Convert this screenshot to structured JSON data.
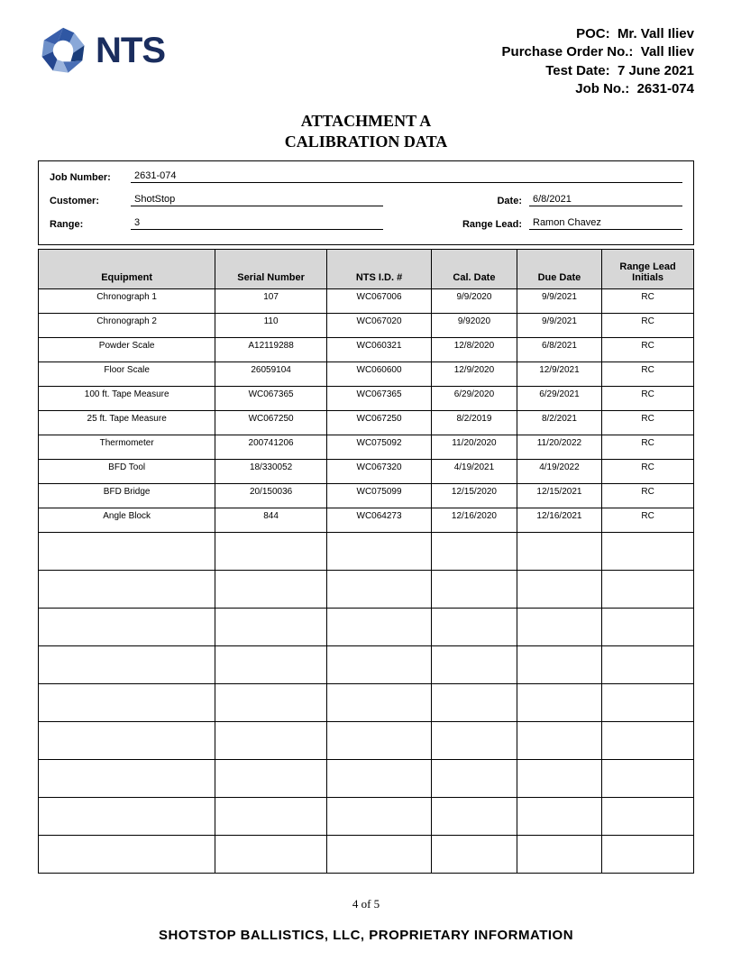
{
  "header": {
    "poc_label": "POC:",
    "poc_value": "Mr. Vall Iliev",
    "po_label": "Purchase Order No.:",
    "po_value": "Vall Iliev",
    "testdate_label": "Test Date:",
    "testdate_value": "7 June 2021",
    "jobno_label": "Job No.:",
    "jobno_value": "2631-074",
    "logo_text": "NTS"
  },
  "title": {
    "line1": "ATTACHMENT A",
    "line2": "CALIBRATION DATA"
  },
  "form": {
    "jobnum_label": "Job Number:",
    "jobnum_value": "2631-074",
    "customer_label": "Customer:",
    "customer_value": "ShotStop",
    "date_label": "Date:",
    "date_value": "6/8/2021",
    "range_label": "Range:",
    "range_value": "3",
    "rangelead_label": "Range Lead:",
    "rangelead_value": "Ramon Chavez"
  },
  "table": {
    "columns": [
      "Equipment",
      "Serial Number",
      "NTS I.D. #",
      "Cal. Date",
      "Due Date",
      "Range Lead Initials"
    ],
    "col_widths": [
      "27%",
      "17%",
      "16%",
      "13%",
      "13%",
      "14%"
    ],
    "header_bg": "#d7d7d7",
    "rows": [
      [
        "Chronograph 1",
        "107",
        "WC067006",
        "9/9/2020",
        "9/9/2021",
        "RC"
      ],
      [
        "Chronograph 2",
        "110",
        "WC067020",
        "9/92020",
        "9/9/2021",
        "RC"
      ],
      [
        "Powder Scale",
        "A12119288",
        "WC060321",
        "12/8/2020",
        "6/8/2021",
        "RC"
      ],
      [
        "Floor Scale",
        "26059104",
        "WC060600",
        "12/9/2020",
        "12/9/2021",
        "RC"
      ],
      [
        "100 ft. Tape Measure",
        "WC067365",
        "WC067365",
        "6/29/2020",
        "6/29/2021",
        "RC"
      ],
      [
        "25 ft. Tape Measure",
        "WC067250",
        "WC067250",
        "8/2/2019",
        "8/2/2021",
        "RC"
      ],
      [
        "Thermometer",
        "200741206",
        "WC075092",
        "11/20/2020",
        "11/20/2022",
        "RC"
      ],
      [
        "BFD Tool",
        "18/330052",
        "WC067320",
        "4/19/2021",
        "4/19/2022",
        "RC"
      ],
      [
        "BFD Bridge",
        "20/150036",
        "WC075099",
        "12/15/2020",
        "12/15/2021",
        "RC"
      ],
      [
        "Angle Block",
        "844",
        "WC064273",
        "12/16/2020",
        "12/16/2021",
        "RC"
      ]
    ],
    "empty_rows": 9
  },
  "footer": {
    "page_num": "4 of 5",
    "proprietary": "SHOTSTOP BALLISTICS, LLC, PROPRIETARY INFORMATION"
  }
}
